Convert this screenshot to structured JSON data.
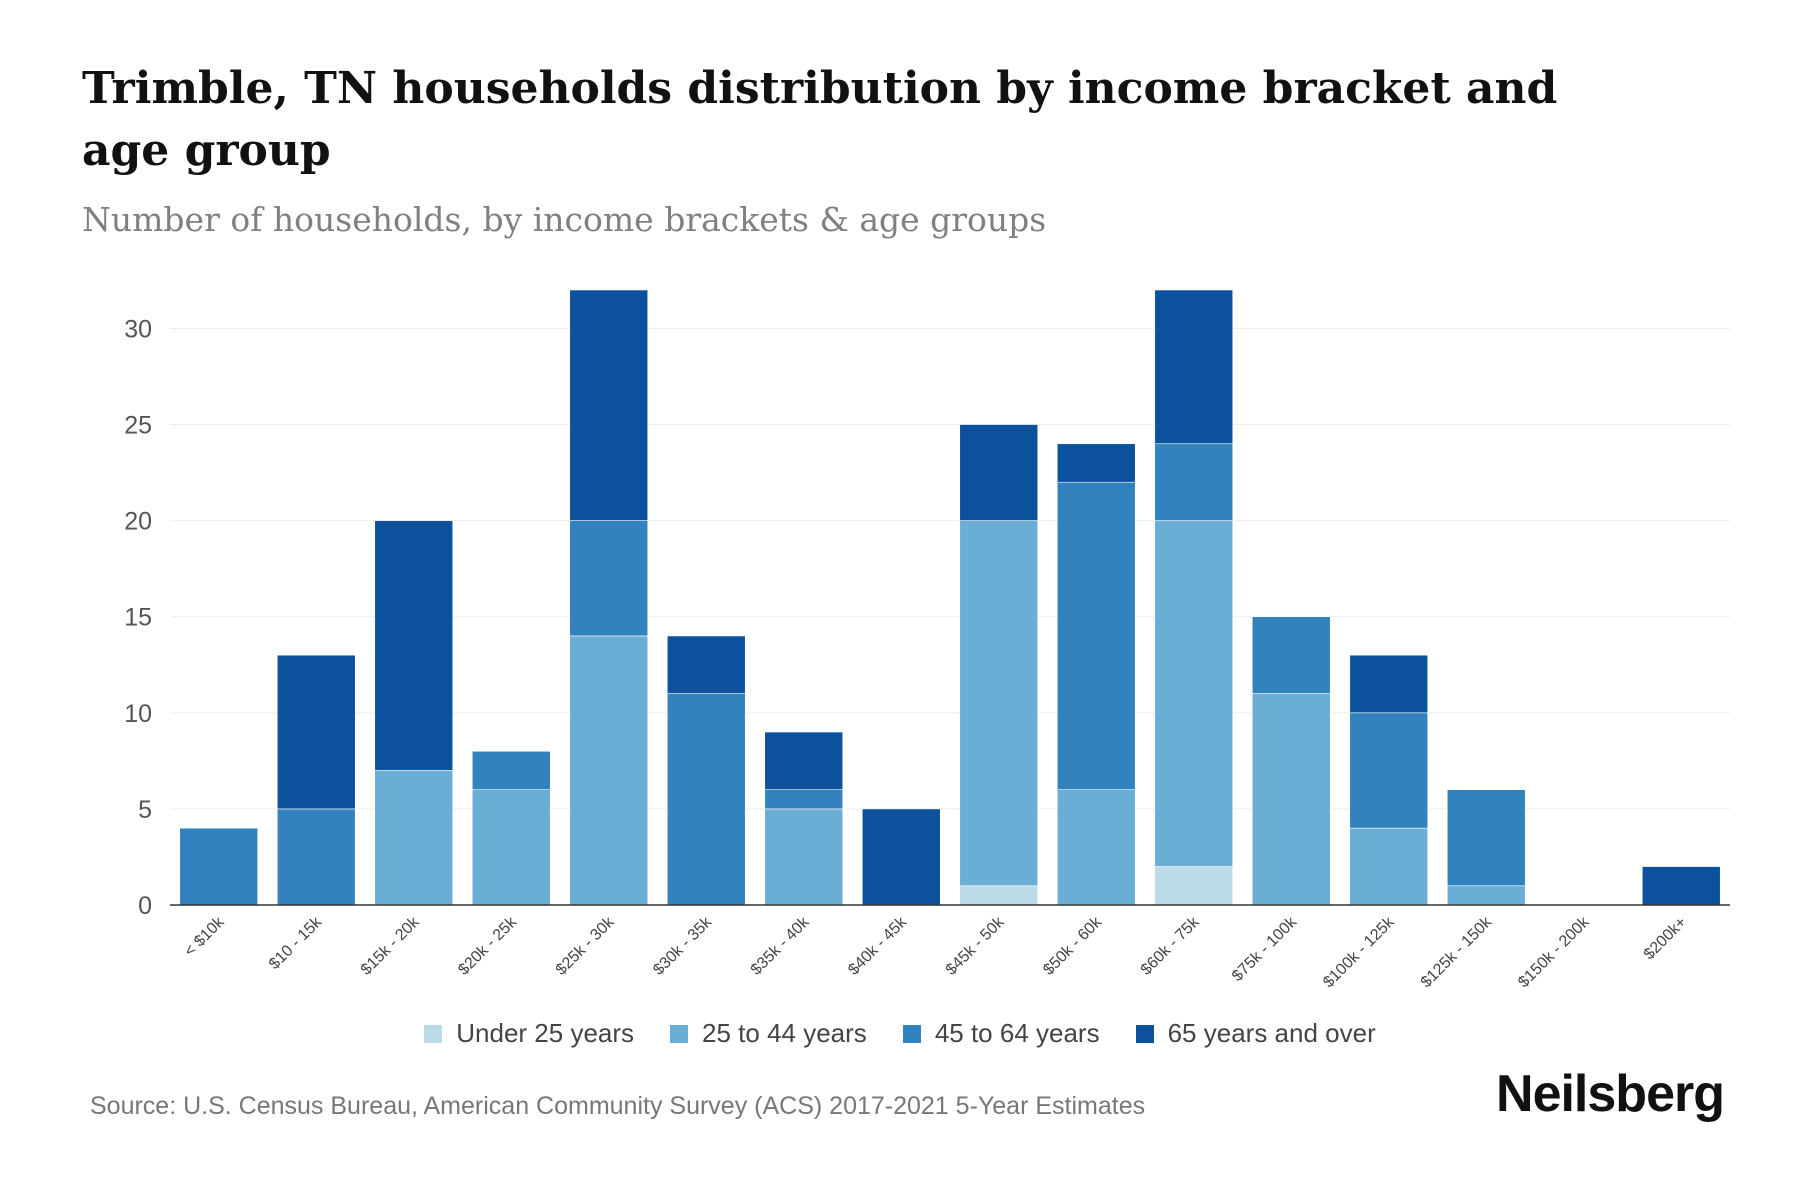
{
  "title": "Trimble, TN households distribution by income bracket and age group",
  "subtitle": "Number of households, by income brackets & age groups",
  "source": "Source: U.S. Census Bureau, American Community Survey (ACS) 2017-2021 5-Year Estimates",
  "brand": "Neilsberg",
  "colors": {
    "under_25": "#bcdbe9",
    "age_25_44": "#6aaed6",
    "age_45_64": "#3282be",
    "age_65_over": "#0b519c"
  },
  "chart_data": {
    "type": "bar",
    "stacked": true,
    "title": "Trimble, TN households distribution by income bracket and age group",
    "xlabel": "",
    "ylabel": "",
    "ylim": [
      0,
      32
    ],
    "yticks": [
      0,
      5,
      10,
      15,
      20,
      25,
      30
    ],
    "grid": true,
    "legend": "bottom-center",
    "categories": [
      "< $10k",
      "$10 - 15k",
      "$15k - 20k",
      "$20k - 25k",
      "$25k - 30k",
      "$30k - 35k",
      "$35k - 40k",
      "$40k - 45k",
      "$45k - 50k",
      "$50k - 60k",
      "$60k - 75k",
      "$75k - 100k",
      "$100k - 125k",
      "$125k - 150k",
      "$150k - 200k",
      "$200k+"
    ],
    "series": [
      {
        "name": "Under 25 years",
        "color": "#bcdbe9",
        "values": [
          0,
          0,
          0,
          0,
          0,
          0,
          0,
          0,
          1,
          0,
          2,
          0,
          0,
          0,
          0,
          0
        ]
      },
      {
        "name": "25 to 44 years",
        "color": "#6aaed6",
        "values": [
          0,
          0,
          7,
          6,
          14,
          0,
          5,
          0,
          19,
          6,
          18,
          11,
          4,
          1,
          0,
          0
        ]
      },
      {
        "name": "45 to 64 years",
        "color": "#3282be",
        "values": [
          4,
          5,
          0,
          2,
          6,
          11,
          1,
          0,
          0,
          16,
          4,
          4,
          6,
          5,
          0,
          0
        ]
      },
      {
        "name": "65 years and over",
        "color": "#0b519c",
        "values": [
          0,
          8,
          13,
          0,
          12,
          3,
          3,
          5,
          5,
          2,
          8,
          0,
          3,
          0,
          0,
          2
        ]
      }
    ]
  }
}
